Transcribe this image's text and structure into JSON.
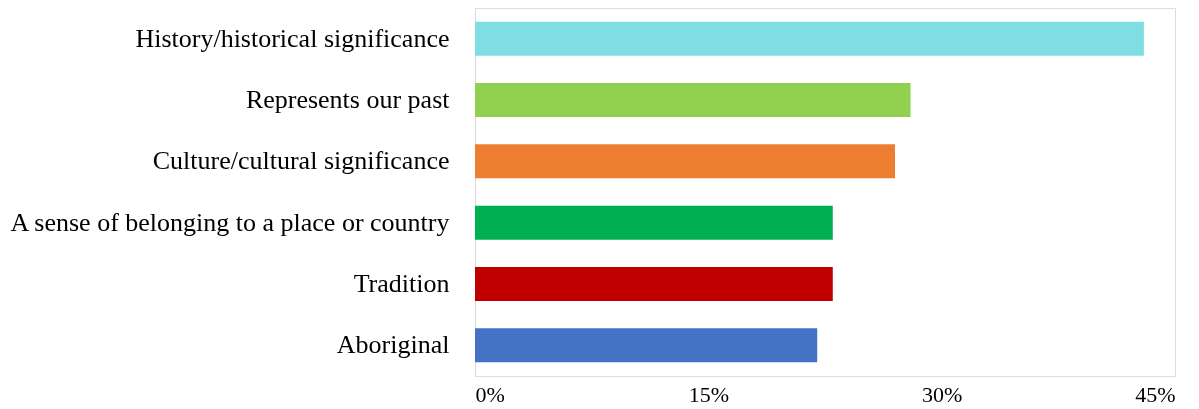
{
  "chart_data": {
    "type": "bar",
    "orientation": "horizontal",
    "categories": [
      "History/historical significance",
      "Represents our past",
      "Culture/cultural significance",
      "A sense of belonging to a place or country",
      "Tradition",
      "Aboriginal"
    ],
    "values": [
      43,
      28,
      27,
      23,
      23,
      22
    ],
    "colors": [
      "#7fdde4",
      "#92d050",
      "#ed7d31",
      "#00b050",
      "#c00000",
      "#4472c4"
    ],
    "xlim": [
      0,
      45
    ],
    "xticks": [
      {
        "value": 0,
        "label": "0%"
      },
      {
        "value": 15,
        "label": "15%"
      },
      {
        "value": 30,
        "label": "30%"
      },
      {
        "value": 45,
        "label": "45%"
      }
    ],
    "grid": false,
    "legend": false
  }
}
